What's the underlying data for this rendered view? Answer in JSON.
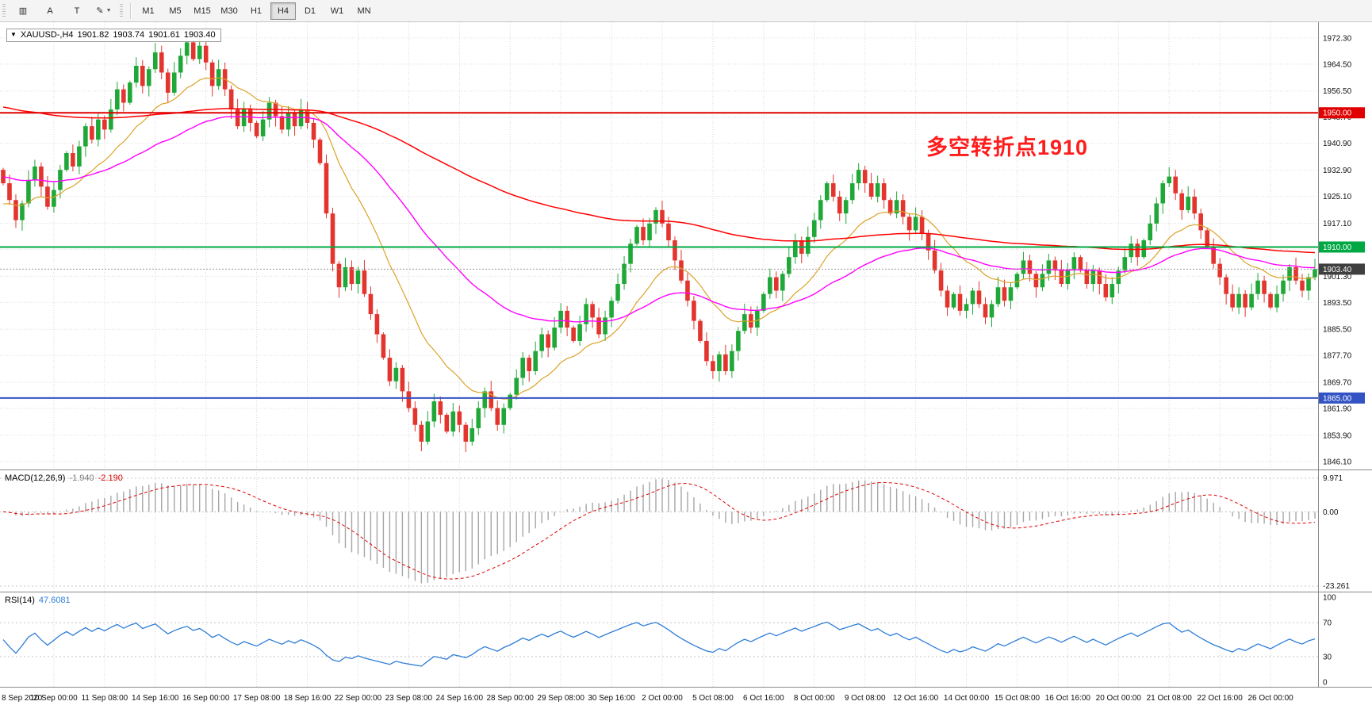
{
  "toolbar": {
    "left_buttons": [
      {
        "name": "charts-grid-icon",
        "glyph": "▥"
      },
      {
        "name": "cursor-a-tool",
        "glyph": "A"
      },
      {
        "name": "text-tool",
        "glyph": "T"
      },
      {
        "name": "template-dropdown",
        "glyph": "✎",
        "caret": "▼"
      }
    ],
    "timeframes": [
      "M1",
      "M5",
      "M15",
      "M30",
      "H1",
      "H4",
      "D1",
      "W1",
      "MN"
    ],
    "active_timeframe": "H4"
  },
  "main_header": {
    "collapse_glyph": "▼",
    "symbol_period": "XAUUSD-,H4",
    "open": "1901.82",
    "high": "1903.74",
    "low": "1901.61",
    "close": "1903.40"
  },
  "annotation": {
    "text": "多空转折点1910",
    "color": "#ff1c1c"
  },
  "macd": {
    "name": "MACD(12,26,9)",
    "value_main": "-1.940",
    "value_signal": "-2.190"
  },
  "rsi": {
    "name": "RSI(14)",
    "value": "47.6081"
  },
  "chart_data": {
    "type": "candlestick",
    "symbol": "XAUUSD-",
    "timeframe": "H4",
    "current_bar": {
      "open": 1901.82,
      "high": 1903.74,
      "low": 1901.61,
      "close": 1903.4
    },
    "first_open": 1933,
    "bull_color": "#1fa837",
    "bear_color": "#e3342e",
    "closes": [
      1929,
      1924,
      1918,
      1923,
      1930,
      1934,
      1928,
      1922,
      1927,
      1933,
      1938,
      1934,
      1940,
      1946,
      1942,
      1948,
      1945,
      1951,
      1957,
      1953,
      1959,
      1964,
      1958,
      1963,
      1968,
      1962,
      1956,
      1962,
      1967,
      1971,
      1966,
      1970,
      1965,
      1958,
      1963,
      1957,
      1951,
      1946,
      1951,
      1947,
      1943,
      1948,
      1953,
      1949,
      1945,
      1950,
      1946,
      1951,
      1947,
      1942,
      1935,
      1920,
      1905,
      1898,
      1904,
      1899,
      1903,
      1896,
      1890,
      1884,
      1877,
      1870,
      1874,
      1867,
      1862,
      1857,
      1852,
      1858,
      1864,
      1860,
      1855,
      1861,
      1857,
      1852,
      1856,
      1862,
      1867,
      1862,
      1857,
      1862,
      1866,
      1871,
      1877,
      1873,
      1879,
      1884,
      1880,
      1886,
      1891,
      1886,
      1882,
      1887,
      1893,
      1889,
      1884,
      1889,
      1894,
      1899,
      1905,
      1911,
      1916,
      1912,
      1917,
      1921,
      1917,
      1912,
      1906,
      1900,
      1894,
      1888,
      1882,
      1876,
      1873,
      1878,
      1873,
      1879,
      1885,
      1890,
      1886,
      1891,
      1896,
      1901,
      1897,
      1902,
      1907,
      1912,
      1908,
      1913,
      1918,
      1924,
      1929,
      1925,
      1920,
      1924,
      1929,
      1933,
      1929,
      1925,
      1929,
      1924,
      1920,
      1924,
      1919,
      1915,
      1919,
      1914,
      1909,
      1903,
      1897,
      1892,
      1896,
      1891,
      1893,
      1897,
      1893,
      1889,
      1893,
      1898,
      1894,
      1898,
      1902,
      1906,
      1902,
      1898,
      1902,
      1906,
      1903,
      1899,
      1903,
      1907,
      1903,
      1899,
      1903,
      1899,
      1895,
      1899,
      1903,
      1907,
      1911,
      1907,
      1912,
      1917,
      1923,
      1929,
      1931,
      1926,
      1921,
      1925,
      1920,
      1915,
      1910,
      1905,
      1901,
      1896,
      1892,
      1896,
      1892,
      1896,
      1900,
      1896,
      1892,
      1896,
      1900,
      1904,
      1900,
      1897,
      1901,
      1903.4
    ],
    "moving_averages": [
      {
        "name": "ma-fast-orange",
        "period": 16,
        "seed": 1922,
        "color": "#dba32a",
        "width": 1.2
      },
      {
        "name": "ma-mid-magenta",
        "period": 48,
        "seed": 1931,
        "color": "#ff00ff",
        "width": 1.4
      },
      {
        "name": "ma-slow-red",
        "period": 160,
        "seed": 1952,
        "color": "#ff0000",
        "width": 1.5
      }
    ],
    "horizontal_levels": [
      {
        "label": "1950.00",
        "price": 1950.0,
        "color": "#e00000",
        "style": "solid"
      },
      {
        "label": "1910.00",
        "price": 1910.0,
        "color": "#00a843",
        "style": "solid"
      },
      {
        "label": "1903.40",
        "price": 1903.4,
        "color": "#3f3f3f",
        "style": "dotted",
        "current": true
      },
      {
        "label": "1865.00",
        "price": 1865.0,
        "color": "#3353c4",
        "style": "solid"
      }
    ],
    "price_axis": {
      "min": 1843.7,
      "max": 1977.0,
      "labels": [
        1972.3,
        1964.5,
        1956.5,
        1948.7,
        1940.9,
        1932.9,
        1925.1,
        1917.1,
        1909.3,
        1901.3,
        1893.5,
        1885.5,
        1877.7,
        1869.7,
        1861.9,
        1853.9,
        1846.1
      ]
    },
    "time_axis": {
      "labels": [
        "8 Sep 2020",
        "10 Sep 00:00",
        "11 Sep 08:00",
        "14 Sep 16:00",
        "16 Sep 00:00",
        "17 Sep 08:00",
        "18 Sep 16:00",
        "22 Sep 00:00",
        "23 Sep 08:00",
        "24 Sep 16:00",
        "28 Sep 00:00",
        "29 Sep 08:00",
        "30 Sep 16:00",
        "2 Oct 00:00",
        "5 Oct 08:00",
        "6 Oct 16:00",
        "8 Oct 00:00",
        "9 Oct 08:00",
        "12 Oct 16:00",
        "14 Oct 00:00",
        "15 Oct 08:00",
        "16 Oct 16:00",
        "20 Oct 00:00",
        "21 Oct 08:00",
        "22 Oct 16:00",
        "26 Oct 00:00"
      ]
    },
    "macd_panel": {
      "fast": 12,
      "slow": 26,
      "signal": 9,
      "axis_labels": [
        "9.971",
        "0.00",
        "-23.261"
      ],
      "histogram_color": "#a6a6a6",
      "signal_color": "#e00000"
    },
    "rsi_panel": {
      "period": 14,
      "axis_labels": [
        "100",
        "70",
        "30",
        "0"
      ],
      "guide_levels": [
        70,
        30
      ],
      "line_color": "#2f7ed8"
    }
  }
}
